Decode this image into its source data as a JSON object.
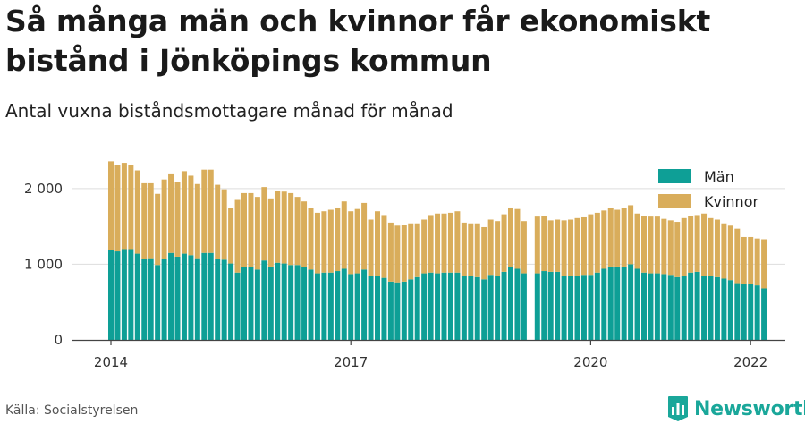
{
  "title": "Så många män och kvinnor får ekonomiskt bistånd i Jönköpings kommun",
  "subtitle": "Antal vuxna biståndsmottagare månad för månad",
  "source": "Källa: Socialstyrelsen",
  "brand": "Newsworthy",
  "colors": {
    "men": "#0e9f96",
    "women": "#d9ad5b",
    "grid": "#dddddd",
    "axis": "#444444",
    "brand": "#1aa79a"
  },
  "chart_data": {
    "type": "bar",
    "stacked": true,
    "grid": true,
    "legend_position": "top-right",
    "ylim": [
      0,
      2400
    ],
    "yticks": [
      {
        "value": 0,
        "label": "0"
      },
      {
        "value": 1000,
        "label": "1 000"
      },
      {
        "value": 2000,
        "label": "2 000"
      }
    ],
    "xticks": [
      {
        "month_index": 0,
        "label": "2014"
      },
      {
        "month_index": 36,
        "label": "2017"
      },
      {
        "month_index": 72,
        "label": "2020"
      },
      {
        "month_index": 96,
        "label": "2022"
      }
    ],
    "start": "2014-01",
    "series": [
      {
        "name": "Män",
        "values": [
          1190,
          1170,
          1200,
          1200,
          1140,
          1070,
          1080,
          990,
          1070,
          1150,
          1100,
          1140,
          1120,
          1080,
          1150,
          1150,
          1070,
          1060,
          1010,
          890,
          960,
          960,
          930,
          1050,
          970,
          1020,
          1010,
          990,
          990,
          960,
          930,
          880,
          890,
          890,
          910,
          940,
          870,
          880,
          930,
          840,
          840,
          820,
          770,
          760,
          770,
          800,
          830,
          880,
          890,
          880,
          890,
          890,
          890,
          840,
          850,
          830,
          800,
          860,
          850,
          900,
          960,
          940,
          880,
          null,
          880,
          910,
          900,
          900,
          850,
          840,
          850,
          860,
          860,
          890,
          940,
          970,
          970,
          970,
          1000,
          940,
          890,
          880,
          880,
          870,
          860,
          830,
          840,
          890,
          900,
          850,
          840,
          830,
          810,
          790,
          750,
          740,
          740,
          720,
          680
        ]
      },
      {
        "name": "Kvinnor",
        "values": [
          1170,
          1140,
          1140,
          1110,
          1100,
          1000,
          990,
          940,
          1050,
          1050,
          990,
          1090,
          1050,
          980,
          1100,
          1100,
          980,
          930,
          730,
          960,
          980,
          980,
          960,
          970,
          900,
          950,
          950,
          950,
          900,
          870,
          810,
          800,
          810,
          830,
          840,
          890,
          830,
          850,
          880,
          750,
          860,
          830,
          780,
          750,
          750,
          740,
          710,
          710,
          760,
          790,
          780,
          790,
          810,
          710,
          690,
          710,
          690,
          730,
          720,
          760,
          790,
          790,
          690,
          null,
          750,
          730,
          680,
          690,
          730,
          750,
          760,
          760,
          800,
          790,
          770,
          770,
          750,
          770,
          780,
          730,
          750,
          750,
          750,
          730,
          720,
          730,
          770,
          750,
          750,
          820,
          770,
          760,
          730,
          720,
          720,
          620,
          620,
          620,
          650
        ]
      }
    ]
  }
}
